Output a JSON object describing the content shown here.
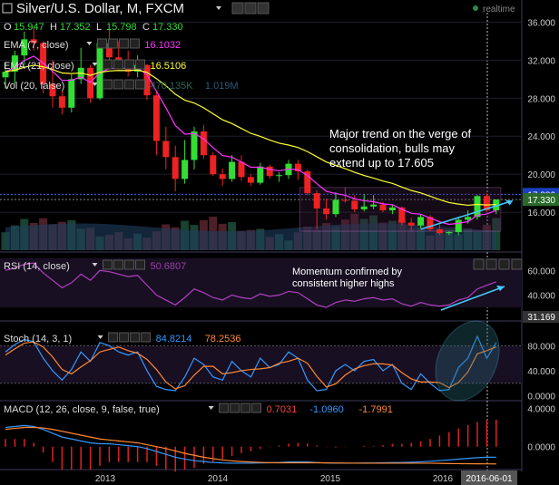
{
  "header": {
    "title": "Silver/U.S. Dollar, M, FXCM",
    "realtime_label": "realtime",
    "ohlc": [
      {
        "k": "O",
        "v": "15.947"
      },
      {
        "k": "H",
        "v": "17.352"
      },
      {
        "k": "L",
        "v": "15.798"
      },
      {
        "k": "C",
        "v": "17.330"
      }
    ]
  },
  "indicators": {
    "ema7": {
      "label": "EMA (7, close)",
      "value": "16.1032",
      "color": "#ff33ff"
    },
    "ema21": {
      "label": "EMA (21, close)",
      "value": "16.5106",
      "color": "#ffff33"
    },
    "vol": {
      "label": "Vol (20, false)",
      "values": [
        "470.135K",
        "1.019M"
      ]
    },
    "rsi": {
      "label": "RSI (14, close)",
      "value": "50.6807"
    },
    "stoch": {
      "label": "Stoch (14, 3, 1)",
      "k": "84.8214",
      "d": "78.2536"
    },
    "macd": {
      "label": "MACD (12, 26, close, 9, false, true)",
      "values": [
        "0.7031",
        "-1.0960",
        "-1.7991"
      ]
    }
  },
  "annotations": {
    "main": "Major trend on the verge of consolidation, bulls may extend up to 17.605",
    "main_lines": [
      "Major trend on the verge of",
      "consolidation, bulls may",
      "extend up to 17.605"
    ],
    "rsi": "Momentum confirmed by consistent higher highs",
    "rsi_lines": [
      "Momentum confirmed by",
      "consistent higher highs"
    ]
  },
  "axes": {
    "price_ticks": [
      "36.000",
      "32.000",
      "28.000",
      "24.000",
      "20.000",
      "16.000"
    ],
    "price_markers": [
      "17.886",
      "17.330"
    ],
    "rsi_ticks": [
      "60.000",
      "40.000"
    ],
    "rsi_marker": "31.169",
    "stoch_ticks": [
      "80.000",
      "40.000",
      "0.0000"
    ],
    "macd_ticks": [
      "4.0000",
      "0.0000"
    ],
    "x_ticks": [
      "2013",
      "2014",
      "2015",
      "2016"
    ],
    "x_current": "2016-06-01"
  },
  "chart_data": {
    "type": "candlestick",
    "title": "Silver/U.S. Dollar, M, FXCM",
    "ylim": [
      12,
      37
    ],
    "candles": [
      [
        30.2,
        31.8,
        29.0,
        30.8
      ],
      [
        30.8,
        33.0,
        29.5,
        32.5
      ],
      [
        32.5,
        35.0,
        31.5,
        34.2
      ],
      [
        34.2,
        35.5,
        33.0,
        33.8
      ],
      [
        33.8,
        34.0,
        28.5,
        29.5
      ],
      [
        29.5,
        32.0,
        27.0,
        28.2
      ],
      [
        28.2,
        28.8,
        26.3,
        27.0
      ],
      [
        27.0,
        30.5,
        26.5,
        30.0
      ],
      [
        30.0,
        33.3,
        29.5,
        31.2
      ],
      [
        31.2,
        31.5,
        27.5,
        28.0
      ],
      [
        28.0,
        34.0,
        27.8,
        33.8
      ],
      [
        33.8,
        35.2,
        32.0,
        32.3
      ],
      [
        32.3,
        34.0,
        31.2,
        31.5
      ],
      [
        31.5,
        33.0,
        30.3,
        30.8
      ],
      [
        30.8,
        32.5,
        30.2,
        31.5
      ],
      [
        31.5,
        31.6,
        27.8,
        28.3
      ],
      [
        28.3,
        28.6,
        22.0,
        23.5
      ],
      [
        23.5,
        25.0,
        20.5,
        21.8
      ],
      [
        21.8,
        23.0,
        18.2,
        19.5
      ],
      [
        19.5,
        23.6,
        19.0,
        21.5
      ],
      [
        21.5,
        25.0,
        20.5,
        24.5
      ],
      [
        24.5,
        25.2,
        21.6,
        22.0
      ],
      [
        22.0,
        22.3,
        19.8,
        20.0
      ],
      [
        20.0,
        20.6,
        18.8,
        19.5
      ],
      [
        19.5,
        22.0,
        19.2,
        21.3
      ],
      [
        21.3,
        22.0,
        19.3,
        19.7
      ],
      [
        19.7,
        20.0,
        18.8,
        19.1
      ],
      [
        19.1,
        21.2,
        18.9,
        20.8
      ],
      [
        20.8,
        21.0,
        19.5,
        19.8
      ],
      [
        19.8,
        20.2,
        19.2,
        19.9
      ],
      [
        19.9,
        21.5,
        19.5,
        21.1
      ],
      [
        21.1,
        21.5,
        19.4,
        20.3
      ],
      [
        20.3,
        20.5,
        17.8,
        18.0
      ],
      [
        18.0,
        18.3,
        14.2,
        16.4
      ],
      [
        16.4,
        17.4,
        15.2,
        15.8
      ],
      [
        15.8,
        18.1,
        15.5,
        17.3
      ],
      [
        17.3,
        18.6,
        17.0,
        17.2
      ],
      [
        17.2,
        17.8,
        16.0,
        16.3
      ],
      [
        16.3,
        17.9,
        16.1,
        16.6
      ],
      [
        16.6,
        17.8,
        16.3,
        16.8
      ],
      [
        16.8,
        17.1,
        16.0,
        16.2
      ],
      [
        16.2,
        16.8,
        15.8,
        16.5
      ],
      [
        16.5,
        16.6,
        14.6,
        14.9
      ],
      [
        14.9,
        15.4,
        14.1,
        14.6
      ],
      [
        14.6,
        15.8,
        14.3,
        15.5
      ],
      [
        15.5,
        15.7,
        14.0,
        14.2
      ],
      [
        14.2,
        14.7,
        13.6,
        13.8
      ],
      [
        13.8,
        14.0,
        13.6,
        13.9
      ],
      [
        13.9,
        15.5,
        13.6,
        15.2
      ],
      [
        15.2,
        16.2,
        14.8,
        15.5
      ],
      [
        15.5,
        17.8,
        15.2,
        17.7
      ],
      [
        17.7,
        18.0,
        16.0,
        16.2
      ],
      [
        16.2,
        17.35,
        15.8,
        17.33
      ]
    ],
    "volume_ylim": [
      0,
      1.5
    ],
    "rsi": [
      60,
      62,
      65,
      66,
      58,
      52,
      46,
      50,
      57,
      52,
      60,
      59,
      57,
      55,
      56,
      48,
      40,
      36,
      32,
      38,
      45,
      42,
      38,
      36,
      40,
      38,
      37,
      41,
      39,
      40,
      43,
      42,
      37,
      32,
      30,
      34,
      36,
      35,
      37,
      38,
      36,
      37,
      33,
      31,
      34,
      32,
      31,
      32,
      36,
      38,
      45,
      48,
      50.68
    ],
    "rsi_ylim": [
      22,
      72
    ],
    "stoch_k": [
      70,
      82,
      90,
      86,
      60,
      40,
      25,
      42,
      70,
      55,
      85,
      80,
      70,
      65,
      70,
      40,
      15,
      10,
      8,
      30,
      60,
      50,
      30,
      25,
      55,
      40,
      30,
      60,
      45,
      50,
      70,
      60,
      25,
      8,
      10,
      40,
      50,
      40,
      55,
      58,
      40,
      50,
      20,
      10,
      35,
      20,
      8,
      10,
      45,
      60,
      95,
      60,
      84.82
    ],
    "stoch_d": [
      65,
      75,
      84,
      86,
      78,
      62,
      42,
      35,
      46,
      56,
      70,
      74,
      78,
      72,
      68,
      58,
      42,
      22,
      11,
      16,
      33,
      47,
      47,
      35,
      37,
      40,
      42,
      43,
      45,
      52,
      55,
      60,
      52,
      31,
      14,
      19,
      33,
      43,
      48,
      51,
      51,
      49,
      37,
      27,
      22,
      22,
      21,
      13,
      21,
      38,
      67,
      72,
      78.25
    ],
    "stoch_ylim": [
      -5,
      108
    ],
    "macd_line": [
      2.0,
      2.1,
      2.2,
      2.1,
      1.8,
      1.4,
      1.0,
      0.8,
      0.6,
      0.4,
      0.3,
      0.3,
      0.2,
      0.1,
      0.0,
      -0.2,
      -0.5,
      -0.8,
      -1.1,
      -1.3,
      -1.45,
      -1.55,
      -1.65,
      -1.7,
      -1.72,
      -1.72,
      -1.72,
      -1.7,
      -1.68,
      -1.65,
      -1.6,
      -1.58,
      -1.6,
      -1.65,
      -1.7,
      -1.72,
      -1.72,
      -1.72,
      -1.7,
      -1.7,
      -1.68,
      -1.65,
      -1.65,
      -1.62,
      -1.58,
      -1.52,
      -1.45,
      -1.38,
      -1.3,
      -1.22,
      -1.15,
      -1.1,
      -1.096
    ],
    "macd_signal": [
      1.8,
      1.9,
      2.0,
      2.0,
      1.95,
      1.8,
      1.6,
      1.4,
      1.2,
      1.0,
      0.8,
      0.7,
      0.6,
      0.5,
      0.4,
      0.2,
      0.0,
      -0.2,
      -0.45,
      -0.7,
      -0.9,
      -1.1,
      -1.25,
      -1.38,
      -1.48,
      -1.55,
      -1.6,
      -1.64,
      -1.67,
      -1.68,
      -1.68,
      -1.68,
      -1.68,
      -1.68,
      -1.69,
      -1.7,
      -1.71,
      -1.72,
      -1.72,
      -1.72,
      -1.72,
      -1.72,
      -1.72,
      -1.72,
      -1.72,
      -1.72,
      -1.74,
      -1.76,
      -1.77,
      -1.78,
      -1.79,
      -1.795,
      -1.7991
    ],
    "macd_ylim": [
      -2.2,
      4.6
    ]
  }
}
